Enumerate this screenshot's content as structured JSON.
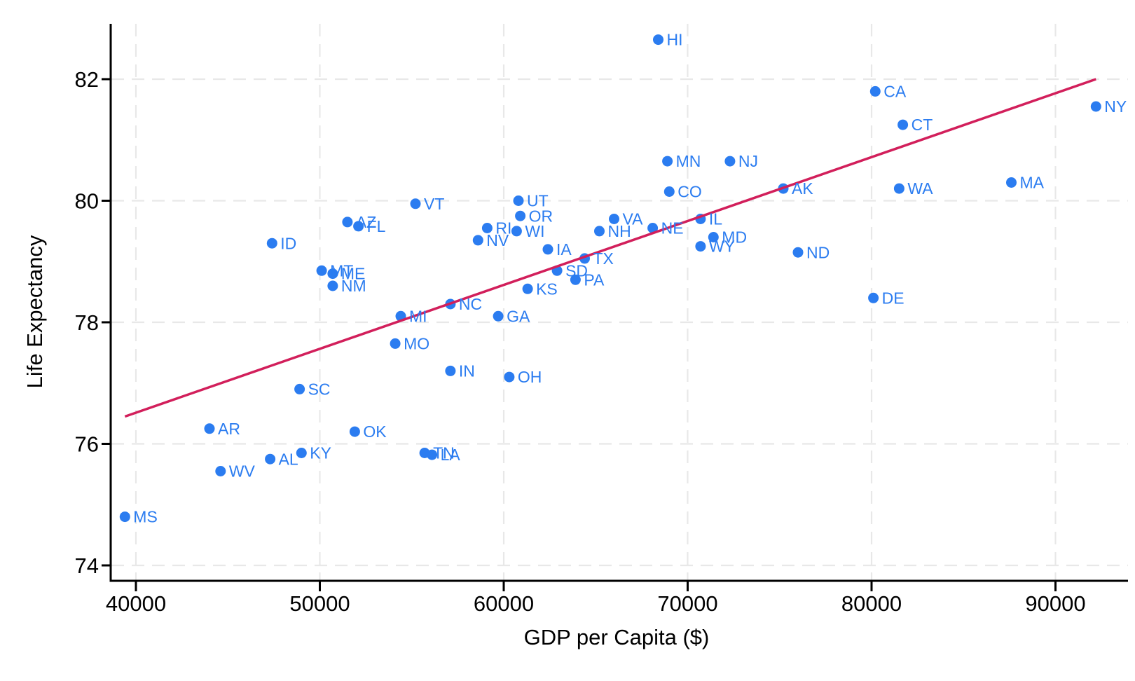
{
  "chart_data": {
    "type": "scatter",
    "title": "",
    "xlabel": "GDP per Capita ($)",
    "ylabel": "Life Expectancy",
    "xlim": [
      38600,
      94000
    ],
    "ylim": [
      73.75,
      82.9
    ],
    "x_ticks": [
      40000,
      50000,
      60000,
      70000,
      80000,
      90000
    ],
    "y_ticks": [
      74,
      76,
      78,
      80,
      82
    ],
    "grid": "dashed-both-axes",
    "legend": "none",
    "point_color": "#2B7CF0",
    "label_color": "#2B7CF0",
    "trend_color": "#D21F5B",
    "grid_color": "#E8E8E8",
    "axis_color": "#000000",
    "points": [
      {
        "state": "MS",
        "gdp": 39400,
        "le": 74.8
      },
      {
        "state": "AR",
        "gdp": 44000,
        "le": 76.25
      },
      {
        "state": "WV",
        "gdp": 44600,
        "le": 75.55
      },
      {
        "state": "AL",
        "gdp": 47300,
        "le": 75.75
      },
      {
        "state": "ID",
        "gdp": 47400,
        "le": 79.3
      },
      {
        "state": "SC",
        "gdp": 48900,
        "le": 76.9
      },
      {
        "state": "KY",
        "gdp": 49000,
        "le": 75.85
      },
      {
        "state": "MT",
        "gdp": 50100,
        "le": 78.85
      },
      {
        "state": "ME",
        "gdp": 50700,
        "le": 78.8
      },
      {
        "state": "NM",
        "gdp": 50700,
        "le": 78.6
      },
      {
        "state": "AZ",
        "gdp": 51500,
        "le": 79.65
      },
      {
        "state": "OK",
        "gdp": 51900,
        "le": 76.2
      },
      {
        "state": "FL",
        "gdp": 52100,
        "le": 79.58
      },
      {
        "state": "MO",
        "gdp": 54100,
        "le": 77.65
      },
      {
        "state": "MI",
        "gdp": 54400,
        "le": 78.1
      },
      {
        "state": "VT",
        "gdp": 55200,
        "le": 79.95
      },
      {
        "state": "TN",
        "gdp": 55700,
        "le": 75.85
      },
      {
        "state": "LA",
        "gdp": 56100,
        "le": 75.82
      },
      {
        "state": "NC",
        "gdp": 57100,
        "le": 78.3
      },
      {
        "state": "IN",
        "gdp": 57100,
        "le": 77.2
      },
      {
        "state": "NV",
        "gdp": 58600,
        "le": 79.35
      },
      {
        "state": "RI",
        "gdp": 59100,
        "le": 79.55
      },
      {
        "state": "GA",
        "gdp": 59700,
        "le": 78.1
      },
      {
        "state": "OH",
        "gdp": 60300,
        "le": 77.1
      },
      {
        "state": "WI",
        "gdp": 60700,
        "le": 79.5
      },
      {
        "state": "UT",
        "gdp": 60800,
        "le": 80.0
      },
      {
        "state": "OR",
        "gdp": 60900,
        "le": 79.75
      },
      {
        "state": "KS",
        "gdp": 61300,
        "le": 78.55
      },
      {
        "state": "IA",
        "gdp": 62400,
        "le": 79.2
      },
      {
        "state": "SD",
        "gdp": 62900,
        "le": 78.85
      },
      {
        "state": "PA",
        "gdp": 63900,
        "le": 78.7
      },
      {
        "state": "TX",
        "gdp": 64400,
        "le": 79.05
      },
      {
        "state": "NH",
        "gdp": 65200,
        "le": 79.5
      },
      {
        "state": "VA",
        "gdp": 66000,
        "le": 79.7
      },
      {
        "state": "NE",
        "gdp": 68100,
        "le": 79.55
      },
      {
        "state": "HI",
        "gdp": 68400,
        "le": 82.65
      },
      {
        "state": "MN",
        "gdp": 68900,
        "le": 80.65
      },
      {
        "state": "CO",
        "gdp": 69000,
        "le": 80.15
      },
      {
        "state": "IL",
        "gdp": 70700,
        "le": 79.7
      },
      {
        "state": "WY",
        "gdp": 70700,
        "le": 79.25
      },
      {
        "state": "MD",
        "gdp": 71400,
        "le": 79.4
      },
      {
        "state": "NJ",
        "gdp": 72300,
        "le": 80.65
      },
      {
        "state": "AK",
        "gdp": 75200,
        "le": 80.2
      },
      {
        "state": "ND",
        "gdp": 76000,
        "le": 79.15
      },
      {
        "state": "DE",
        "gdp": 80100,
        "le": 78.4
      },
      {
        "state": "CA",
        "gdp": 80200,
        "le": 81.8
      },
      {
        "state": "WA",
        "gdp": 81500,
        "le": 80.2
      },
      {
        "state": "CT",
        "gdp": 81700,
        "le": 81.25
      },
      {
        "state": "MA",
        "gdp": 87600,
        "le": 80.3
      },
      {
        "state": "NY",
        "gdp": 92200,
        "le": 81.55
      }
    ],
    "trendline": {
      "x1": 39400,
      "y1": 76.45,
      "x2": 92200,
      "y2": 82.0
    }
  }
}
